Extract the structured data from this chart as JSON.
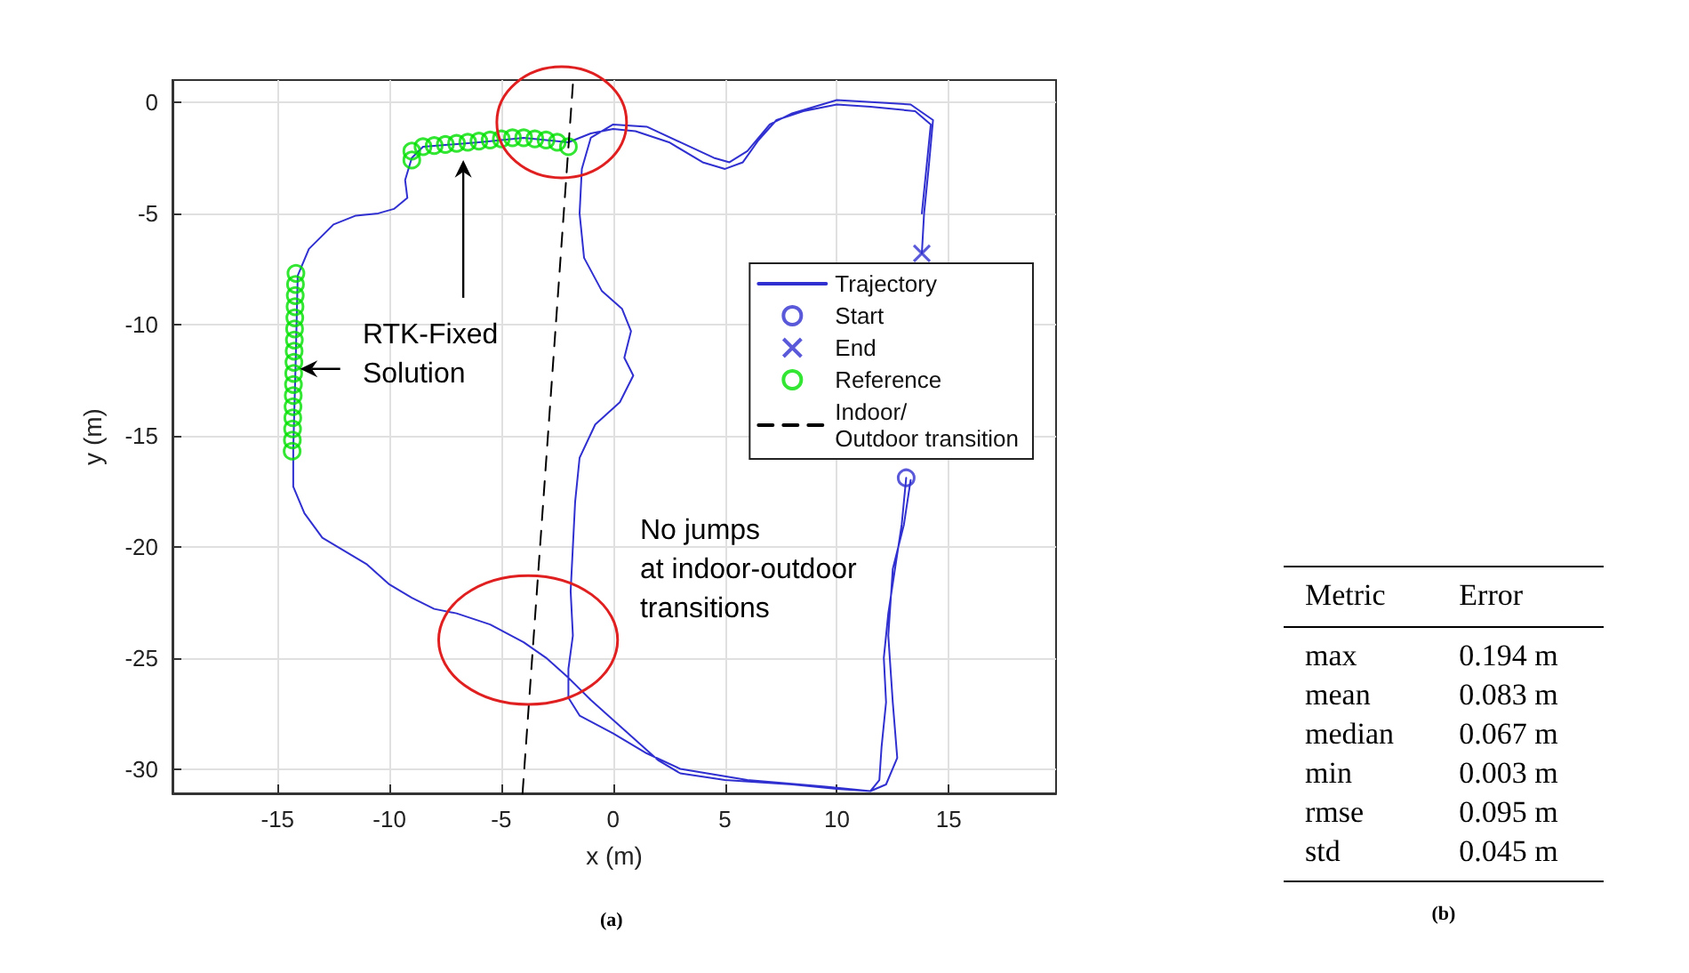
{
  "chart_data": [
    {
      "type": "line",
      "xlabel": "x (m)",
      "ylabel": "y (m)",
      "xlim": [
        -19.7,
        19.8
      ],
      "ylim": [
        -31.1,
        1.0
      ],
      "xticks": [
        -15,
        -10,
        -5,
        0,
        5,
        10,
        15
      ],
      "yticks": [
        -30,
        -25,
        -20,
        -15,
        -10,
        -5,
        0
      ],
      "grid": true,
      "legend": "right",
      "annotations": [
        "RTK-Fixed\nSolution",
        "No jumps\nat indoor-outdoor\ntransitions",
        "(a)"
      ],
      "series": [
        {
          "name": "Trajectory",
          "type": "line",
          "color": "#3030d0",
          "marker": "none",
          "line_style": "solid",
          "x": [
            13.1,
            12.9,
            12.6,
            12.3,
            12.1,
            12.2,
            12.0,
            11.9,
            11.5,
            10,
            8,
            5,
            3,
            2,
            1,
            0,
            -1,
            -2,
            -3,
            -4,
            -5.5,
            -7,
            -8,
            -9,
            -10,
            -11,
            -12,
            -13,
            -13.8,
            -14.3,
            -14.3,
            -14.2,
            -14.1,
            -13.6,
            -12.5,
            -11.5,
            -10.5,
            -9.8,
            -9.2,
            -9.3,
            -9.0,
            -8.5,
            -6,
            -4,
            -2,
            -1,
            0,
            1,
            2.5,
            4,
            5,
            5.8,
            6.5,
            7.3,
            8.5,
            10,
            11.5,
            13.5,
            14.2,
            14.0,
            13.8,
            13.7,
            13.6,
            13.5,
            13.3,
            13.0,
            12.5,
            12.3,
            12.5,
            12.7,
            12.2,
            11.5,
            9.5,
            6,
            3,
            1.5,
            0,
            -1.5,
            -2.0,
            -2.0,
            -1.8,
            -1.9,
            -1.8,
            -1.7,
            -1.5,
            -0.8,
            0.3,
            0.9,
            0.5,
            0.8,
            0.4,
            -0.5,
            -1.3,
            -1.5,
            -1.4,
            -1.0,
            0,
            1.5,
            3,
            4.5,
            5.2,
            6,
            7,
            8,
            10,
            13.3,
            14.3,
            14.1,
            13.9,
            13.8
          ],
          "values": [
            -16.9,
            -19,
            -21,
            -23,
            -25,
            -27,
            -29,
            -30.5,
            -31.0,
            -30.9,
            -30.7,
            -30.5,
            -30.2,
            -29.6,
            -28.7,
            -27.8,
            -26.9,
            -25.9,
            -25,
            -24.3,
            -23.5,
            -23.0,
            -22.8,
            -22.3,
            -21.7,
            -20.8,
            -20.2,
            -19.6,
            -18.5,
            -17.3,
            -15.6,
            -12,
            -7.8,
            -6.6,
            -5.5,
            -5.1,
            -5.0,
            -4.8,
            -4.3,
            -3.5,
            -2.5,
            -2.0,
            -1.8,
            -1.6,
            -1.8,
            -1.4,
            -1.2,
            -1.3,
            -1.8,
            -2.7,
            -3.0,
            -2.7,
            -1.7,
            -0.8,
            -0.4,
            -0.1,
            -0.2,
            -0.4,
            -1.0,
            -3,
            -5,
            null,
            null,
            null,
            -17,
            -19,
            -21,
            -24,
            -27,
            -29.5,
            -30.7,
            -31.0,
            -30.8,
            -30.5,
            -30.0,
            -29.3,
            -28.4,
            -27.6,
            -26.8,
            -25.5,
            -24,
            -22,
            -20,
            -18,
            -16,
            -14.5,
            -13.5,
            -12.3,
            -11.5,
            -10.3,
            -9.3,
            -8.5,
            -7,
            -5,
            -3,
            -1.6,
            -1.0,
            -1.1,
            -1.8,
            -2.5,
            -2.7,
            -2.2,
            -1.0,
            -0.5,
            0.1,
            -0.1,
            -0.8,
            -3,
            -5,
            -6.8
          ]
        },
        {
          "name": "Start",
          "type": "scatter",
          "color": "#3030d0",
          "marker": "circle",
          "x": [
            13.1
          ],
          "values": [
            -16.9
          ]
        },
        {
          "name": "End",
          "type": "scatter",
          "color": "#3030d0",
          "marker": "cross",
          "x": [
            13.8
          ],
          "values": [
            -6.8
          ]
        },
        {
          "name": "Reference",
          "type": "scatter",
          "color": "#00e000",
          "marker": "circle",
          "x": [
            -14.35,
            -14.34,
            -14.33,
            -14.32,
            -14.31,
            -14.3,
            -14.29,
            -14.28,
            -14.27,
            -14.26,
            -14.25,
            -14.24,
            -14.23,
            -14.22,
            -14.21,
            -14.2,
            -14.18,
            -9.0,
            -9.0,
            -8.5,
            -8.0,
            -7.5,
            -7.0,
            -6.5,
            -6.0,
            -5.5,
            -5.0,
            -4.5,
            -4.0,
            -3.5,
            -3.0,
            -2.5,
            -2.0
          ],
          "values": [
            -15.7,
            -15.2,
            -14.7,
            -14.2,
            -13.7,
            -13.2,
            -12.7,
            -12.2,
            -11.7,
            -11.2,
            -10.7,
            -10.2,
            -9.7,
            -9.2,
            -8.7,
            -8.2,
            -7.7,
            -2.6,
            -2.2,
            -2.0,
            -1.95,
            -1.9,
            -1.85,
            -1.8,
            -1.75,
            -1.7,
            -1.65,
            -1.6,
            -1.6,
            -1.65,
            -1.7,
            -1.8,
            -2.0
          ]
        },
        {
          "name": "Indoor/\nOutdoor transition",
          "type": "line",
          "color": "#000000",
          "marker": "none",
          "line_style": "dashed",
          "x": [
            -4.05,
            -1.8
          ],
          "values": [
            -31.1,
            0.8
          ]
        }
      ]
    },
    {
      "type": "other",
      "annotations": [
        "Metric",
        "Error",
        "max",
        "0.194 m",
        "mean",
        "0.083 m",
        "median",
        "0.067 m",
        "min",
        "0.003 m",
        "rmse",
        "0.095 m",
        "std",
        "0.045 m",
        "(b)"
      ]
    }
  ]
}
